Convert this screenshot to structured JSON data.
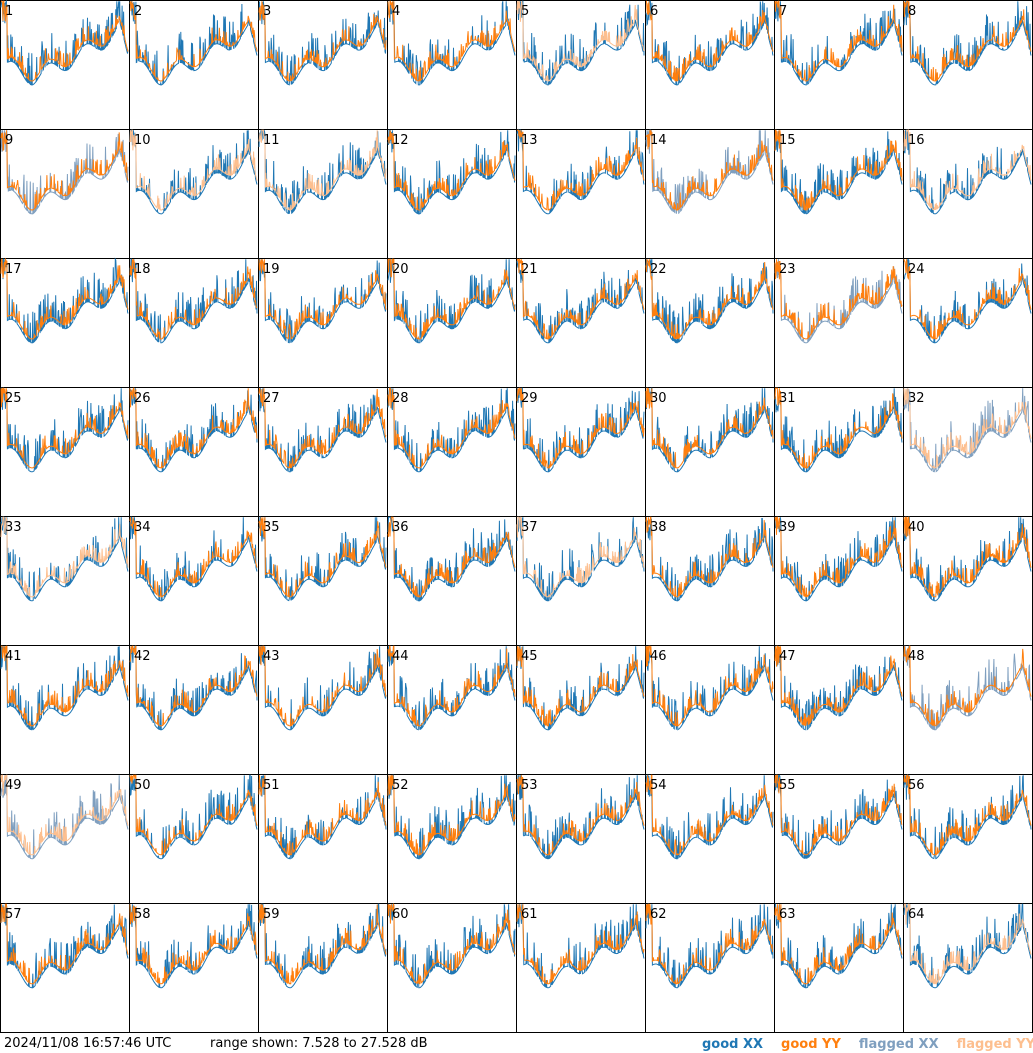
{
  "panels": [
    {
      "label": "1",
      "xx": "#1f77b4",
      "yy": "#ff7f0e"
    },
    {
      "label": "2",
      "xx": "#1f77b4",
      "yy": "#ff7f0e"
    },
    {
      "label": "3",
      "xx": "#1f77b4",
      "yy": "#ff7f0e"
    },
    {
      "label": "4",
      "xx": "#1f77b4",
      "yy": "#ff7f0e"
    },
    {
      "label": "5",
      "xx": "#1f77b4",
      "yy": "#fdbf8f"
    },
    {
      "label": "6",
      "xx": "#1f77b4",
      "yy": "#ff7f0e"
    },
    {
      "label": "7",
      "xx": "#1f77b4",
      "yy": "#ff7f0e"
    },
    {
      "label": "8",
      "xx": "#1f77b4",
      "yy": "#ff7f0e"
    },
    {
      "label": "9",
      "xx": "#7f9fbf",
      "yy": "#ff7f0e"
    },
    {
      "label": "10",
      "xx": "#1f77b4",
      "yy": "#fdbf8f"
    },
    {
      "label": "11",
      "xx": "#1f77b4",
      "yy": "#fdbf8f"
    },
    {
      "label": "12",
      "xx": "#1f77b4",
      "yy": "#ff7f0e"
    },
    {
      "label": "13",
      "xx": "#1f77b4",
      "yy": "#ff7f0e"
    },
    {
      "label": "14",
      "xx": "#7f9fbf",
      "yy": "#ff7f0e"
    },
    {
      "label": "15",
      "xx": "#1f77b4",
      "yy": "#ff7f0e"
    },
    {
      "label": "16",
      "xx": "#1f77b4",
      "yy": "#fdbf8f"
    },
    {
      "label": "17",
      "xx": "#1f77b4",
      "yy": "#ff7f0e"
    },
    {
      "label": "18",
      "xx": "#1f77b4",
      "yy": "#ff7f0e"
    },
    {
      "label": "19",
      "xx": "#1f77b4",
      "yy": "#ff7f0e"
    },
    {
      "label": "20",
      "xx": "#1f77b4",
      "yy": "#ff7f0e"
    },
    {
      "label": "21",
      "xx": "#1f77b4",
      "yy": "#ff7f0e"
    },
    {
      "label": "22",
      "xx": "#1f77b4",
      "yy": "#ff7f0e"
    },
    {
      "label": "23",
      "xx": "#7f9fbf",
      "yy": "#ff7f0e"
    },
    {
      "label": "24",
      "xx": "#1f77b4",
      "yy": "#ff7f0e"
    },
    {
      "label": "25",
      "xx": "#1f77b4",
      "yy": "#ff7f0e"
    },
    {
      "label": "26",
      "xx": "#1f77b4",
      "yy": "#ff7f0e"
    },
    {
      "label": "27",
      "xx": "#1f77b4",
      "yy": "#ff7f0e"
    },
    {
      "label": "28",
      "xx": "#1f77b4",
      "yy": "#ff7f0e"
    },
    {
      "label": "29",
      "xx": "#1f77b4",
      "yy": "#ff7f0e"
    },
    {
      "label": "30",
      "xx": "#1f77b4",
      "yy": "#ff7f0e"
    },
    {
      "label": "31",
      "xx": "#1f77b4",
      "yy": "#ff7f0e"
    },
    {
      "label": "32",
      "xx": "#7f9fbf",
      "yy": "#fdbf8f"
    },
    {
      "label": "33",
      "xx": "#1f77b4",
      "yy": "#fdbf8f"
    },
    {
      "label": "34",
      "xx": "#1f77b4",
      "yy": "#ff7f0e"
    },
    {
      "label": "35",
      "xx": "#1f77b4",
      "yy": "#ff7f0e"
    },
    {
      "label": "36",
      "xx": "#1f77b4",
      "yy": "#ff7f0e"
    },
    {
      "label": "37",
      "xx": "#1f77b4",
      "yy": "#fdbf8f"
    },
    {
      "label": "38",
      "xx": "#1f77b4",
      "yy": "#ff7f0e"
    },
    {
      "label": "39",
      "xx": "#1f77b4",
      "yy": "#ff7f0e"
    },
    {
      "label": "40",
      "xx": "#1f77b4",
      "yy": "#ff7f0e"
    },
    {
      "label": "41",
      "xx": "#1f77b4",
      "yy": "#ff7f0e"
    },
    {
      "label": "42",
      "xx": "#1f77b4",
      "yy": "#ff7f0e"
    },
    {
      "label": "43",
      "xx": "#1f77b4",
      "yy": "#ff7f0e"
    },
    {
      "label": "44",
      "xx": "#1f77b4",
      "yy": "#ff7f0e"
    },
    {
      "label": "45",
      "xx": "#1f77b4",
      "yy": "#ff7f0e"
    },
    {
      "label": "46",
      "xx": "#1f77b4",
      "yy": "#ff7f0e"
    },
    {
      "label": "47",
      "xx": "#1f77b4",
      "yy": "#ff7f0e"
    },
    {
      "label": "48",
      "xx": "#7f9fbf",
      "yy": "#ff7f0e"
    },
    {
      "label": "49",
      "xx": "#7f9fbf",
      "yy": "#fdbf8f"
    },
    {
      "label": "50",
      "xx": "#1f77b4",
      "yy": "#ff7f0e"
    },
    {
      "label": "51",
      "xx": "#1f77b4",
      "yy": "#ff7f0e"
    },
    {
      "label": "52",
      "xx": "#1f77b4",
      "yy": "#ff7f0e"
    },
    {
      "label": "53",
      "xx": "#1f77b4",
      "yy": "#ff7f0e"
    },
    {
      "label": "54",
      "xx": "#1f77b4",
      "yy": "#ff7f0e"
    },
    {
      "label": "55",
      "xx": "#1f77b4",
      "yy": "#ff7f0e"
    },
    {
      "label": "56",
      "xx": "#1f77b4",
      "yy": "#ff7f0e"
    },
    {
      "label": "57",
      "xx": "#1f77b4",
      "yy": "#ff7f0e"
    },
    {
      "label": "58",
      "xx": "#1f77b4",
      "yy": "#ff7f0e"
    },
    {
      "label": "59",
      "xx": "#1f77b4",
      "yy": "#ff7f0e"
    },
    {
      "label": "60",
      "xx": "#1f77b4",
      "yy": "#ff7f0e"
    },
    {
      "label": "61",
      "xx": "#1f77b4",
      "yy": "#ff7f0e"
    },
    {
      "label": "62",
      "xx": "#1f77b4",
      "yy": "#ff7f0e"
    },
    {
      "label": "63",
      "xx": "#1f77b4",
      "yy": "#ff7f0e"
    },
    {
      "label": "64",
      "xx": "#1f77b4",
      "yy": "#fdbf8f"
    }
  ],
  "footer": {
    "timestamp": "2024/11/08 16:57:46 UTC",
    "range": "range shown: 7.528 to 27.528 dB"
  },
  "legend": [
    {
      "name": "good XX",
      "color": "#1f77b4"
    },
    {
      "name": "good YY",
      "color": "#ff7f0e"
    },
    {
      "name": "flagged XX",
      "color": "#7f9fbf"
    },
    {
      "name": "flagged YY",
      "color": "#fdbf8f"
    }
  ]
}
